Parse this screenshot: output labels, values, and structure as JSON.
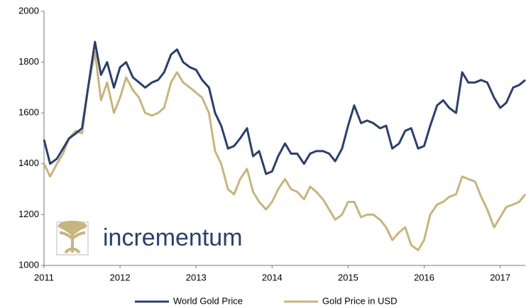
{
  "chart_data": {
    "type": "line",
    "watermark": "incrementum",
    "x": [
      2011.0,
      2011.08,
      2011.17,
      2011.25,
      2011.33,
      2011.42,
      2011.5,
      2011.58,
      2011.67,
      2011.75,
      2011.83,
      2011.92,
      2012.0,
      2012.08,
      2012.17,
      2012.25,
      2012.33,
      2012.42,
      2012.5,
      2012.58,
      2012.67,
      2012.75,
      2012.83,
      2012.92,
      2013.0,
      2013.08,
      2013.17,
      2013.25,
      2013.33,
      2013.42,
      2013.5,
      2013.58,
      2013.67,
      2013.75,
      2013.83,
      2013.92,
      2014.0,
      2014.08,
      2014.17,
      2014.25,
      2014.33,
      2014.42,
      2014.5,
      2014.58,
      2014.67,
      2014.75,
      2014.83,
      2014.92,
      2015.0,
      2015.08,
      2015.17,
      2015.25,
      2015.33,
      2015.42,
      2015.5,
      2015.58,
      2015.67,
      2015.75,
      2015.83,
      2015.92,
      2016.0,
      2016.08,
      2016.17,
      2016.25,
      2016.33,
      2016.42,
      2016.5,
      2016.58,
      2016.67,
      2016.75,
      2016.83,
      2016.92,
      2017.0,
      2017.08,
      2017.17,
      2017.25,
      2017.33
    ],
    "series": [
      {
        "name": "World Gold Price",
        "color": "#2b3f6b",
        "values": [
          1495,
          1400,
          1420,
          1460,
          1500,
          1520,
          1540,
          1700,
          1880,
          1750,
          1800,
          1700,
          1780,
          1800,
          1740,
          1720,
          1700,
          1720,
          1730,
          1760,
          1830,
          1850,
          1800,
          1780,
          1770,
          1730,
          1700,
          1600,
          1550,
          1460,
          1470,
          1500,
          1540,
          1430,
          1450,
          1360,
          1370,
          1430,
          1480,
          1440,
          1440,
          1400,
          1440,
          1450,
          1450,
          1440,
          1410,
          1460,
          1550,
          1630,
          1560,
          1570,
          1560,
          1540,
          1550,
          1460,
          1480,
          1530,
          1540,
          1460,
          1470,
          1550,
          1630,
          1650,
          1620,
          1600,
          1760,
          1720,
          1720,
          1730,
          1720,
          1660,
          1620,
          1640,
          1700,
          1710,
          1730
        ]
      },
      {
        "name": "Gold Price in USD",
        "color": "#c8b47e",
        "values": [
          1400,
          1350,
          1400,
          1440,
          1500,
          1530,
          1520,
          1700,
          1840,
          1650,
          1720,
          1600,
          1660,
          1740,
          1690,
          1660,
          1600,
          1590,
          1600,
          1620,
          1720,
          1760,
          1720,
          1700,
          1680,
          1660,
          1600,
          1450,
          1400,
          1300,
          1280,
          1340,
          1380,
          1290,
          1250,
          1220,
          1250,
          1300,
          1340,
          1300,
          1290,
          1260,
          1310,
          1290,
          1260,
          1220,
          1180,
          1200,
          1250,
          1250,
          1190,
          1200,
          1200,
          1180,
          1150,
          1100,
          1130,
          1150,
          1080,
          1060,
          1100,
          1200,
          1240,
          1250,
          1270,
          1280,
          1350,
          1340,
          1330,
          1270,
          1220,
          1150,
          1190,
          1230,
          1240,
          1250,
          1280
        ]
      }
    ],
    "xlim": [
      2011,
      2017.33
    ],
    "xticks": [
      2011,
      2012,
      2013,
      2014,
      2015,
      2016,
      2017
    ],
    "ylim": [
      1000,
      2000
    ],
    "yticks": [
      1000,
      1200,
      1400,
      1600,
      1800,
      2000
    ],
    "grid": false,
    "legend": "bottom"
  }
}
